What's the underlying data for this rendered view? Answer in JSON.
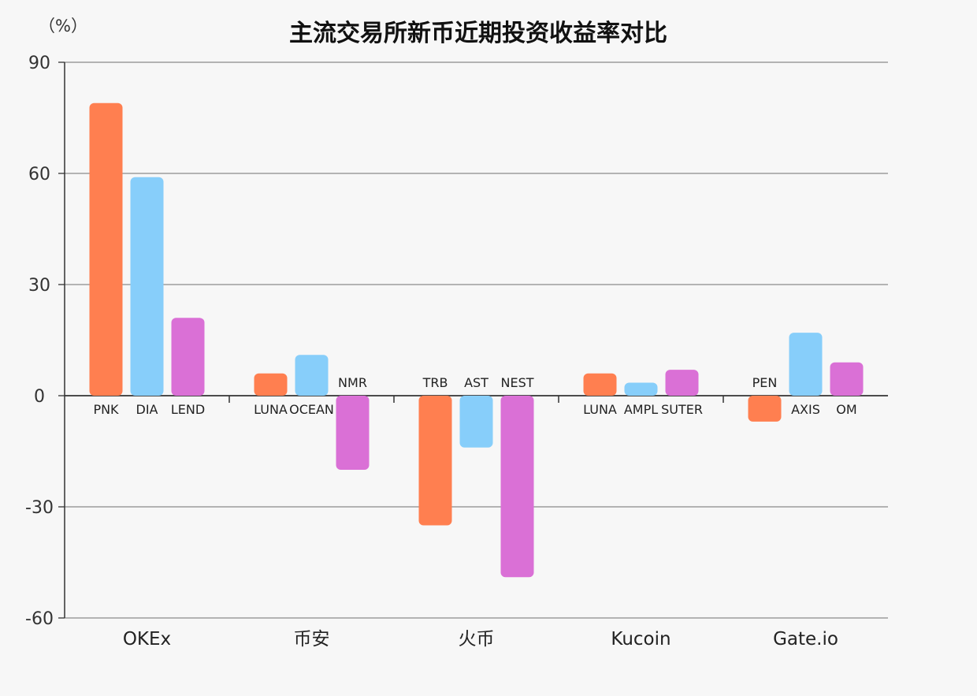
{
  "chart_data": {
    "type": "bar",
    "title": "主流交易所新币近期投资收益率对比",
    "ylabel": "（%）",
    "xlabel": "",
    "ylim": [
      -60,
      90
    ],
    "yticks": [
      90,
      60,
      30,
      0,
      -30,
      -60
    ],
    "ytick_labels": [
      "90",
      "60",
      "30",
      "0",
      "-30",
      "-60"
    ],
    "grid": true,
    "categories": [
      "OKEx",
      "币安",
      "火币",
      "Kucoin",
      "Gate.io"
    ],
    "series": [
      {
        "color": "#ff7f50",
        "labels": [
          "PNK",
          "LUNA",
          "TRB",
          "LUNA",
          "PEN"
        ],
        "values": [
          79,
          6,
          -35,
          6,
          -7
        ]
      },
      {
        "color": "#87cefa",
        "labels": [
          "DIA",
          "OCEAN",
          "AST",
          "AMPL",
          "AXIS"
        ],
        "values": [
          59,
          11,
          -14,
          3.5,
          17
        ]
      },
      {
        "color": "#da70d6",
        "labels": [
          "LEND",
          "NMR",
          "NEST",
          "SUTER",
          "OM"
        ],
        "values": [
          21,
          -20,
          -49,
          7,
          9
        ]
      }
    ]
  }
}
